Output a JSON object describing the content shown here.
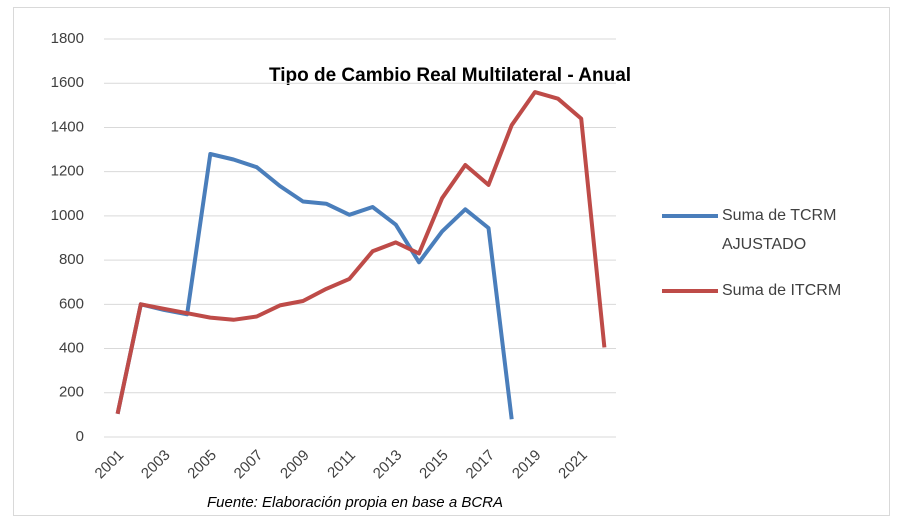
{
  "chart_data": {
    "type": "line",
    "title": "Tipo de Cambio Real Multilateral - Anual",
    "note": "Fuente: Elaboración propia en base a BCRA",
    "categories": [
      "2001",
      null,
      "2003",
      null,
      "2005",
      null,
      "2007",
      null,
      "2009",
      null,
      "2011",
      null,
      "2013",
      null,
      "2015",
      null,
      "2017",
      null,
      "2019",
      null,
      "2021",
      null
    ],
    "series": [
      {
        "name": "Suma de TCRM AJUSTADO",
        "color": "#4a7ebb",
        "values": [
          105,
          600,
          575,
          555,
          1280,
          1255,
          1220,
          1135,
          1065,
          1055,
          1005,
          1040,
          960,
          790,
          930,
          1030,
          945,
          80,
          null,
          null,
          null,
          null
        ]
      },
      {
        "name": "Suma de ITCRM",
        "color": "#be4b48",
        "values": [
          105,
          600,
          580,
          560,
          540,
          530,
          545,
          595,
          615,
          670,
          715,
          840,
          880,
          830,
          1080,
          1230,
          1140,
          1410,
          1560,
          1530,
          1440,
          405
        ]
      }
    ],
    "ylim": [
      0,
      1800
    ],
    "yticks": [
      0,
      200,
      400,
      600,
      800,
      1000,
      1200,
      1400,
      1600,
      1800
    ],
    "grid": true
  }
}
